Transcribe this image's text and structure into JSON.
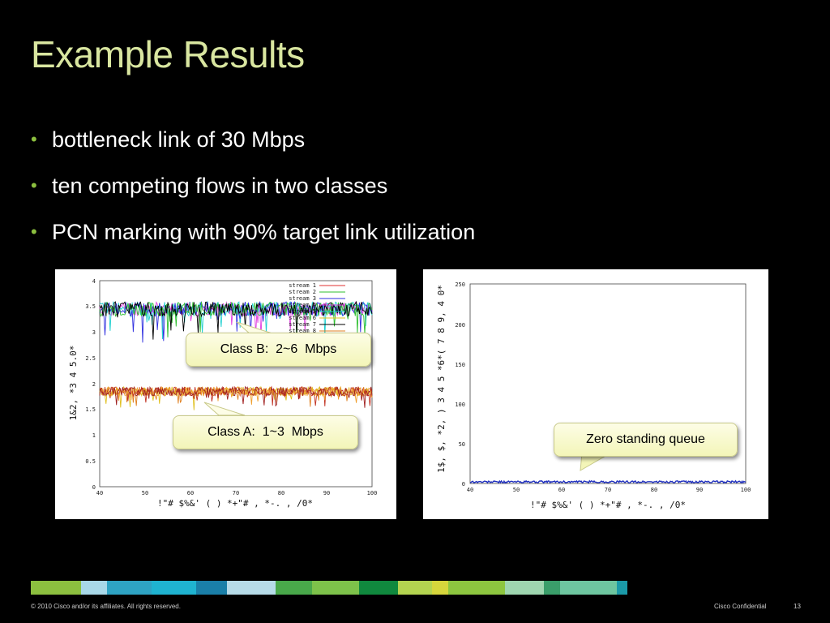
{
  "slide": {
    "title": "Example Results",
    "bullets": [
      "bottleneck link of 30 Mbps",
      "ten competing flows in two classes",
      "PCN marking with 90% target link utilization"
    ]
  },
  "left_chart": {
    "x_ticks": [
      "40",
      "50",
      "60",
      "70",
      "80",
      "90",
      "100"
    ],
    "y_ticks": [
      "0",
      "0.5",
      "1",
      "1.5",
      "2",
      "2.5",
      "3",
      "3.5",
      "4"
    ],
    "x_label": "!\"# $%&' ( ) *+\"# , *-. , /0*",
    "y_label": "1&2, *3 4 5.0*",
    "legend": [
      "stream 1",
      "stream 2",
      "stream 3",
      "stream 4",
      "stream 5",
      "stream 6",
      "stream 7",
      "stream 8"
    ],
    "callout_b": "Class B:  2~6  Mbps",
    "callout_a": "Class A:  1~3  Mbps"
  },
  "right_chart": {
    "x_ticks": [
      "40",
      "50",
      "60",
      "70",
      "80",
      "90",
      "100"
    ],
    "y_ticks": [
      "0",
      "50",
      "100",
      "150",
      "200",
      "250"
    ],
    "x_label": "!\"# $%&' ( ) *+\"# , *-. , /0*",
    "y_label": "1$, $, *2, ) 3 4 5 *6*( 7 8 9, 4 0*",
    "callout": "Zero standing queue"
  },
  "chart_data": [
    {
      "type": "line",
      "xlim": [
        40,
        100
      ],
      "ylim": [
        0,
        4
      ],
      "series": [
        {
          "name": "Class B",
          "approx_range": [
            2,
            6
          ],
          "mean": 3.45
        },
        {
          "name": "Class A",
          "approx_range": [
            1,
            3
          ],
          "mean": 1.85
        }
      ]
    },
    {
      "type": "line",
      "xlim": [
        40,
        100
      ],
      "ylim": [
        0,
        250
      ],
      "series": [
        {
          "name": "queue",
          "mean": 2
        }
      ]
    }
  ],
  "colors": {
    "title": "#d9e6a0",
    "bullet_dot": "#8cbf3f",
    "footer_segments": [
      "#8cbf3f",
      "#a8d8e8",
      "#2ea3c3",
      "#1fb3d0",
      "#1a7fa8",
      "#b6dbe8",
      "#49a84a",
      "#7dc24a",
      "#10893e",
      "#b4d450",
      "#d6d63c",
      "#8dc63f",
      "#9fd6b0",
      "#3a9e6a",
      "#6ec6a0",
      "#1b9aa8"
    ]
  },
  "footer": {
    "copyright": "© 2010 Cisco and/or its affiliates. All rights reserved.",
    "confidential": "Cisco Confidential",
    "page_number": "13"
  }
}
